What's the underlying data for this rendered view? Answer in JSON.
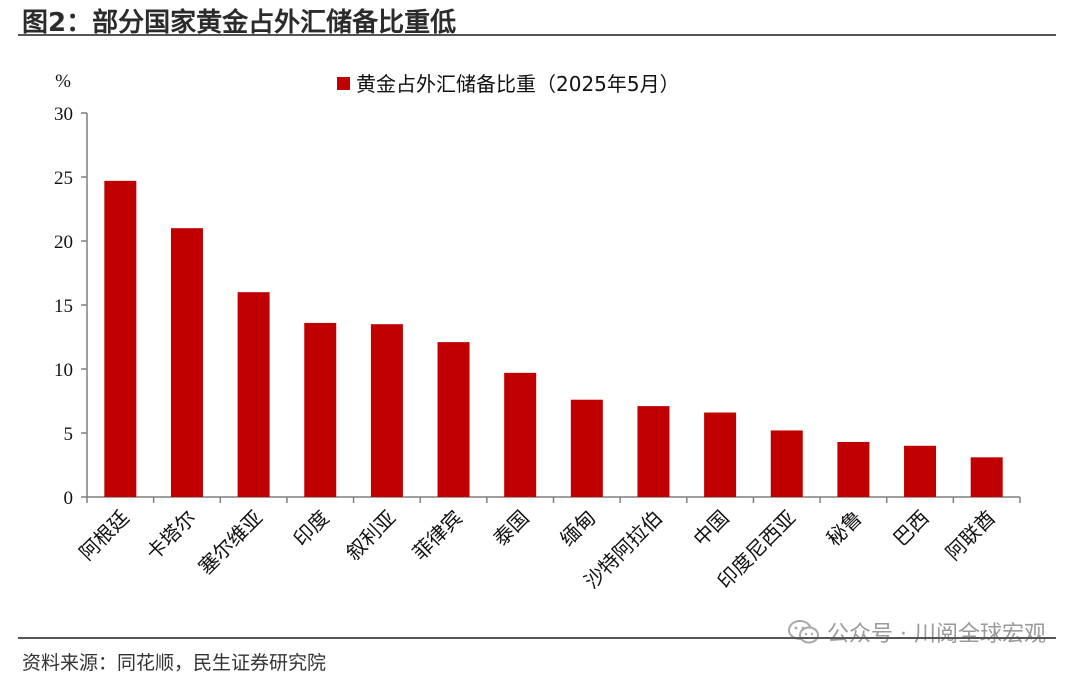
{
  "header": {
    "title": "图2：部分国家黄金占外汇储备比重低"
  },
  "footer": {
    "source": "资料来源：同花顺，民生证券研究院"
  },
  "watermark": {
    "text": "公众号 · 川阅全球宏观",
    "icon": "wechat-icon"
  },
  "chart_data": {
    "type": "bar",
    "ylabel": "%",
    "ylim": [
      0,
      30
    ],
    "yticks": [
      0,
      5,
      10,
      15,
      20,
      25,
      30
    ],
    "legend_position": "top-center",
    "grid": false,
    "categories": [
      "阿根廷",
      "卡塔尔",
      "塞尔维亚",
      "印度",
      "叙利亚",
      "菲律宾",
      "泰国",
      "缅甸",
      "沙特阿拉伯",
      "中国",
      "印度尼西亚",
      "秘鲁",
      "巴西",
      "阿联酋"
    ],
    "series": [
      {
        "name": "黄金占外汇储备比重（2025年5月）",
        "color": "#c00000",
        "values": [
          24.7,
          21.0,
          16.0,
          13.6,
          13.5,
          12.1,
          9.7,
          7.6,
          7.1,
          6.6,
          5.2,
          4.3,
          4.0,
          3.1
        ]
      }
    ]
  }
}
